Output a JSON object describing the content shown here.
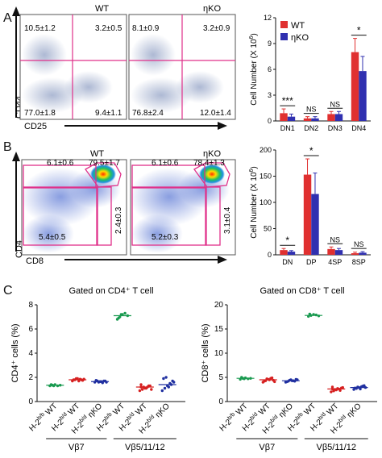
{
  "panels": {
    "A": {
      "letter": "A",
      "flow": {
        "y_axis": "CD44",
        "x_axis": "CD25",
        "plots": [
          {
            "label": "WT",
            "q_ul": "10.5±1.2",
            "q_ur": "3.2±0.5",
            "q_ll": "77.0±1.8",
            "q_lr": "9.4±1.1"
          },
          {
            "label": "ηKO",
            "q_ul": "8.1±0.9",
            "q_ur": "3.2±0.9",
            "q_ll": "76.8±2.4",
            "q_lr": "12.0±1.4"
          }
        ]
      }
    },
    "B": {
      "letter": "B",
      "flow": {
        "y_axis": "CD4",
        "x_axis": "CD8",
        "plots": [
          {
            "label": "WT",
            "g_cd4": "6.1±0.6",
            "g_dp": "79.5±1.7",
            "g_dn": "5.4±0.5",
            "g_cd8": "2.4±0.3"
          },
          {
            "label": "ηKO",
            "g_cd4": "6.1±0.6",
            "g_dp": "78.4±1.3",
            "g_dn": "5.2±0.3",
            "g_cd8": "3.1±0.4"
          }
        ]
      }
    },
    "C": {
      "letter": "C",
      "left_title": "Gated on CD4⁺ T cell",
      "right_title": "Gated on CD8⁺ T cell",
      "group_vb7": "Vβ7",
      "group_vb5": "Vβ5/11/12",
      "x_labels": [
        "H-2b/b WT",
        "H-2b/d WT",
        "H-2b/d ηKO",
        "H-2b/b WT",
        "H-2b/d WT",
        "H-2b/d ηKO"
      ],
      "x_label_sup": [
        "b/b",
        "b/d",
        "b/d",
        "b/b",
        "b/d",
        "b/d"
      ],
      "x_label_main": [
        "H-2",
        "H-2",
        "H-2",
        "H-2",
        "H-2",
        "H-2"
      ],
      "x_label_tail": [
        "WT",
        "WT",
        "ηKO",
        "WT",
        "WT",
        "ηKO"
      ]
    }
  },
  "chart_data": [
    {
      "type": "bar",
      "title": "",
      "ylabel": "Cell Number (X 10^6)",
      "categories": [
        "DN1",
        "DN2",
        "DN3",
        "DN4"
      ],
      "ylim": [
        0,
        12
      ],
      "yticks": [
        0,
        3,
        6,
        9,
        12
      ],
      "series": [
        {
          "name": "WT",
          "color": "#e03030",
          "values": [
            0.9,
            0.3,
            0.8,
            8.0
          ],
          "errors": [
            0.5,
            0.2,
            0.3,
            1.6
          ]
        },
        {
          "name": "ηKO",
          "color": "#3030b0",
          "values": [
            0.5,
            0.3,
            0.8,
            5.8
          ],
          "errors": [
            0.3,
            0.2,
            0.3,
            1.7
          ]
        }
      ],
      "annotations": [
        "***",
        "NS",
        "NS",
        "*"
      ],
      "legend": "top-left"
    },
    {
      "type": "bar",
      "title": "",
      "ylabel": "Cell Number (X 10^6)",
      "categories": [
        "DN",
        "DP",
        "4SP",
        "8SP"
      ],
      "ylim": [
        0,
        200
      ],
      "yticks": [
        0,
        50,
        100,
        150,
        200
      ],
      "series": [
        {
          "name": "WT",
          "color": "#e03030",
          "values": [
            9,
            153,
            11,
            3
          ],
          "errors": [
            3,
            30,
            4,
            2
          ]
        },
        {
          "name": "ηKO",
          "color": "#3030b0",
          "values": [
            6,
            116,
            9,
            4
          ],
          "errors": [
            2,
            40,
            3,
            2
          ]
        }
      ],
      "annotations": [
        "*",
        "*",
        "NS",
        "NS"
      ]
    },
    {
      "type": "scatter",
      "title": "Gated on CD4⁺ T cell",
      "ylabel": "CD4⁺ cells (%)",
      "ylim": [
        0,
        8
      ],
      "yticks": [
        0,
        2,
        4,
        6,
        8
      ],
      "groups": [
        {
          "color": "#1a9a50",
          "mean": 1.35,
          "points": [
            1.3,
            1.35,
            1.4,
            1.3,
            1.35,
            1.4,
            1.3
          ]
        },
        {
          "color": "#d62020",
          "mean": 1.8,
          "points": [
            1.7,
            1.8,
            1.9,
            1.85,
            1.75,
            1.8,
            1.9,
            1.7,
            1.8,
            1.85
          ]
        },
        {
          "color": "#2030a0",
          "mean": 1.65,
          "points": [
            1.6,
            1.7,
            1.65,
            1.55,
            1.7,
            1.75,
            1.6,
            1.65,
            1.7,
            1.6
          ]
        },
        {
          "color": "#1a9a50",
          "mean": 7.1,
          "points": [
            6.8,
            7.0,
            7.2,
            7.3,
            7.1,
            6.9,
            7.2
          ]
        },
        {
          "color": "#d62020",
          "mean": 1.2,
          "points": [
            0.9,
            1.0,
            1.1,
            1.2,
            1.3,
            1.4,
            1.2,
            1.1,
            1.3,
            1.0,
            1.2
          ]
        },
        {
          "color": "#2030a0",
          "mean": 1.4,
          "points": [
            0.9,
            1.1,
            1.3,
            1.5,
            1.7,
            1.9,
            2.0,
            1.2,
            1.4,
            1.6
          ]
        }
      ]
    },
    {
      "type": "scatter",
      "title": "Gated on CD8⁺ T cell",
      "ylabel": "CD8⁺ cells (%)",
      "ylim": [
        0,
        20
      ],
      "yticks": [
        0,
        5,
        10,
        15,
        20
      ],
      "groups": [
        {
          "color": "#1a9a50",
          "mean": 4.8,
          "points": [
            4.6,
            4.8,
            4.9,
            4.7,
            4.8,
            5.0,
            4.7
          ]
        },
        {
          "color": "#d62020",
          "mean": 4.5,
          "points": [
            4.0,
            4.3,
            4.6,
            4.8,
            4.4,
            4.2,
            4.7,
            4.5,
            4.9,
            4.1
          ]
        },
        {
          "color": "#2030a0",
          "mean": 4.3,
          "points": [
            4.0,
            4.2,
            4.5,
            4.3,
            4.6,
            4.1,
            4.4,
            4.3,
            4.2,
            4.5
          ]
        },
        {
          "color": "#1a9a50",
          "mean": 17.8,
          "points": [
            17.6,
            17.8,
            18.0,
            17.9,
            17.7,
            18.1
          ]
        },
        {
          "color": "#d62020",
          "mean": 2.6,
          "points": [
            2.0,
            2.2,
            2.4,
            2.6,
            2.8,
            3.0,
            2.5,
            2.7,
            2.3,
            2.9,
            2.6
          ]
        },
        {
          "color": "#2030a0",
          "mean": 2.9,
          "points": [
            2.5,
            2.7,
            2.9,
            3.1,
            3.3,
            2.8,
            3.0,
            2.6,
            3.2,
            2.9
          ]
        }
      ]
    }
  ]
}
